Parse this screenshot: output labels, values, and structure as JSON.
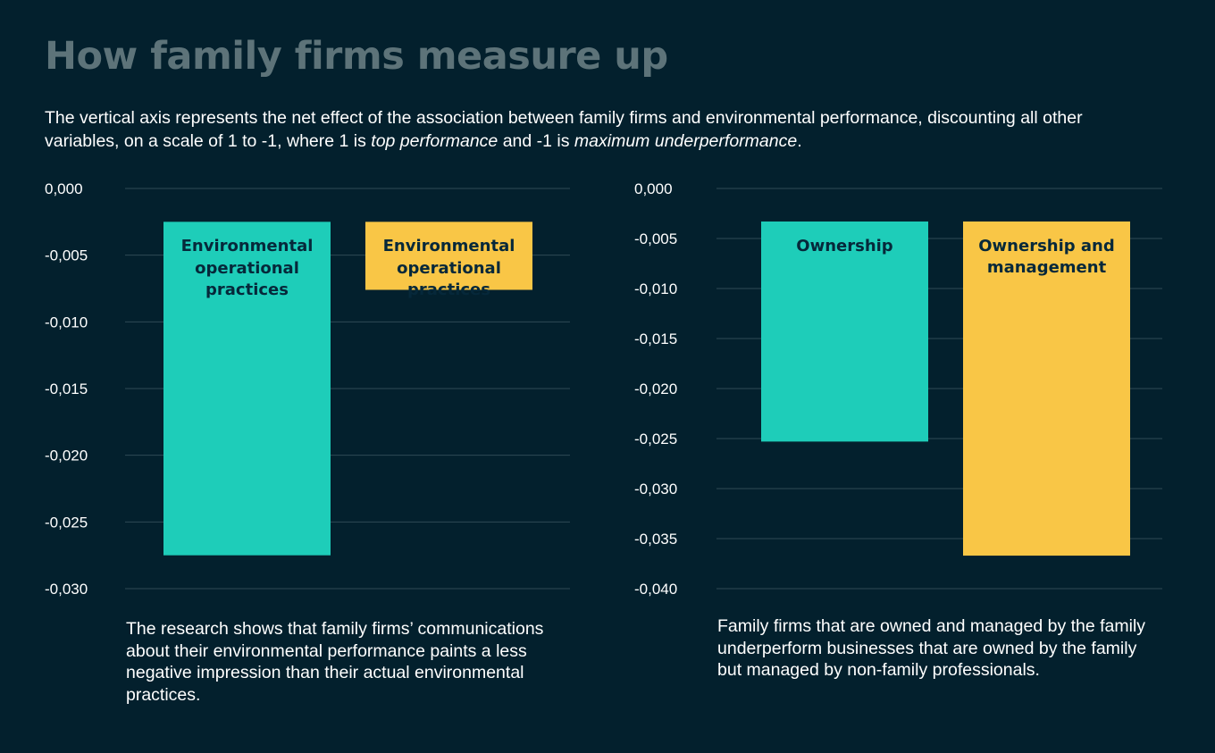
{
  "title": "How family firms measure up",
  "subtitle": {
    "part1": "The vertical axis represents the net effect of the association between family firms and environmental performance, discounting all other variables, on a scale of 1 to -1, where 1 is ",
    "em1": "top performance",
    "part2": " and -1 is ",
    "em2": "maximum underperformance",
    "part3": "."
  },
  "colors": {
    "background": "#03202d",
    "teal": "#1ecdb9",
    "yellow": "#f9c646",
    "gridline": "#2f4a55",
    "title": "#5d7379",
    "bar_text": "#06283a"
  },
  "chart_data": [
    {
      "type": "bar",
      "categories": [
        "Environmental operational practices",
        "Environmental operational practices"
      ],
      "bar_labels": [
        [
          "Environmental",
          "operational",
          "practices"
        ],
        [
          "Environmental",
          "operational",
          "practices"
        ]
      ],
      "values": [
        -0.0275,
        -0.0076
      ],
      "bar_top": -0.0025,
      "bar_colors": [
        "#1ecdb9",
        "#f9c646"
      ],
      "ylim": [
        -0.03,
        0.0
      ],
      "yticks": [
        0.0,
        -0.005,
        -0.01,
        -0.015,
        -0.02,
        -0.025,
        -0.03
      ],
      "ytick_labels": [
        "0,000",
        "-0,005",
        "-0,010",
        "-0,015",
        "-0,020",
        "-0,025",
        "-0,030"
      ],
      "grid": true,
      "title": "",
      "xlabel": "",
      "ylabel": ""
    },
    {
      "type": "bar",
      "categories": [
        "Ownership",
        "Ownership and management"
      ],
      "bar_labels": [
        [
          "Ownership"
        ],
        [
          "Ownership and",
          "management"
        ]
      ],
      "values": [
        -0.0253,
        -0.0367
      ],
      "bar_top": -0.0033,
      "bar_colors": [
        "#1ecdb9",
        "#f9c646"
      ],
      "ylim": [
        -0.04,
        0.0
      ],
      "yticks": [
        0.0,
        -0.005,
        -0.01,
        -0.015,
        -0.02,
        -0.025,
        -0.03,
        -0.035,
        -0.04
      ],
      "ytick_labels": [
        "0,000",
        "-0,005",
        "-0,010",
        "-0,015",
        "-0,020",
        "-0,025",
        "-0,030",
        "-0,035",
        "-0,040"
      ],
      "grid": true,
      "title": "",
      "xlabel": "",
      "ylabel": ""
    }
  ],
  "notes": {
    "left": "The research shows that family firms’ communications about their environmental performance paints a less negative impression than their actual environmental practices.",
    "right": "Family firms that are owned and managed by the family underperform businesses that are owned by the family but managed by non-family professionals."
  }
}
